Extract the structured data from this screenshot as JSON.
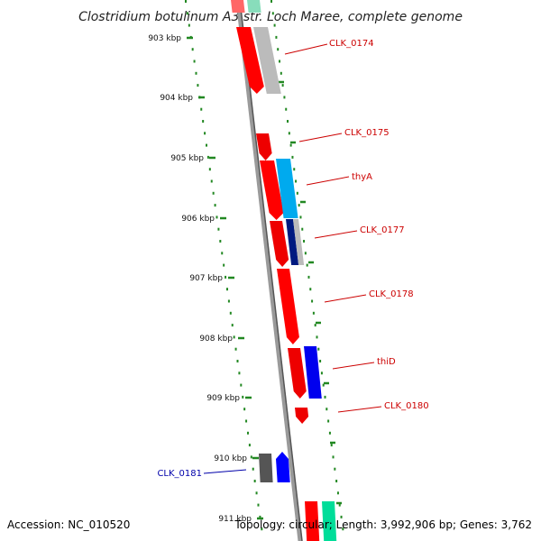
{
  "title": "Clostridium botulinum A3 str. Loch Maree, complete genome",
  "ruler": {
    "unit": "kbp",
    "ticks": [
      "903 kbp",
      "904 kbp",
      "905 kbp",
      "906 kbp",
      "907 kbp",
      "908 kbp",
      "909 kbp",
      "910 kbp",
      "911 kbp"
    ]
  },
  "genes": [
    {
      "label": "CLK_0174",
      "strand": "+",
      "color": "#ff0000"
    },
    {
      "label": "CLK_0175",
      "strand": "+",
      "color": "#ff0000"
    },
    {
      "label": "thyA",
      "strand": "+",
      "color": "#ff0000"
    },
    {
      "label": "CLK_0177",
      "strand": "+",
      "color": "#ff0000"
    },
    {
      "label": "CLK_0178",
      "strand": "+",
      "color": "#ff0000"
    },
    {
      "label": "thiD",
      "strand": "+",
      "color": "#ff0000"
    },
    {
      "label": "CLK_0180",
      "strand": "+",
      "color": "#ff0000"
    },
    {
      "label": "CLK_0181",
      "strand": "-",
      "color": "#0000ff"
    }
  ],
  "colors": {
    "forward_label": "#cc0000",
    "reverse_label": "#0000aa",
    "tick_green": "#228822",
    "backbone": "#777777"
  },
  "footer": {
    "accession": "Accession: NC_010520",
    "topology": "Topology: circular; Length: 3,992,906 bp; Genes: 3,762"
  }
}
